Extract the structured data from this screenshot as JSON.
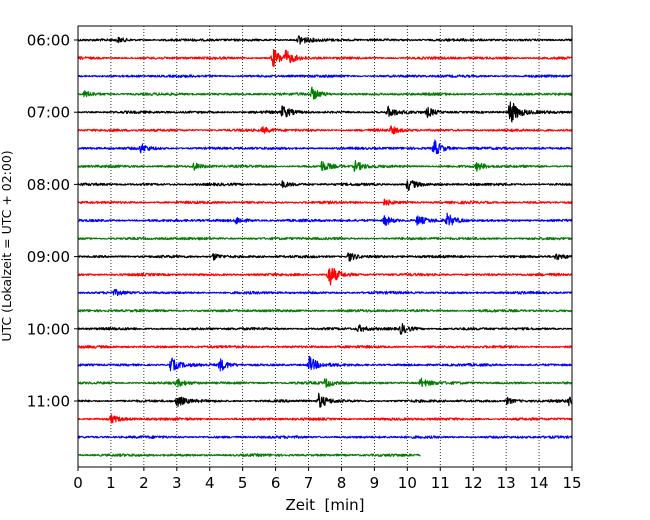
{
  "chart_data": {
    "type": "line",
    "title": "",
    "xlabel": "Zeit  [min]",
    "ylabel": "UTC (Lokalzeit = UTC + 02:00)",
    "xlim": [
      0,
      15
    ],
    "x_ticks": [
      0,
      1,
      2,
      3,
      4,
      5,
      6,
      7,
      8,
      9,
      10,
      11,
      12,
      13,
      14,
      15
    ],
    "y_tick_labels": [
      "06:00",
      "07:00",
      "08:00",
      "09:00",
      "10:00",
      "11:00"
    ],
    "grid": "vertical dotted lines at each minute",
    "legend": "none",
    "trace_interval_min": 15,
    "color_cycle": [
      "#000000",
      "#ff0000",
      "#0000ff",
      "#008000"
    ],
    "traces": [
      {
        "start": "06:00",
        "color": "#000000",
        "x_end": 15,
        "events": [
          {
            "x": 6.7,
            "amp": 0.45
          },
          {
            "x": 1.2,
            "amp": 0.2
          }
        ]
      },
      {
        "start": "06:15",
        "color": "#ff0000",
        "x_end": 15,
        "events": [
          {
            "x": 5.9,
            "amp": 0.85
          },
          {
            "x": 6.3,
            "amp": 0.5
          }
        ]
      },
      {
        "start": "06:30",
        "color": "#0000ff",
        "x_end": 15,
        "events": []
      },
      {
        "start": "06:45",
        "color": "#008000",
        "x_end": 15,
        "events": [
          {
            "x": 7.1,
            "amp": 0.5
          },
          {
            "x": 0.2,
            "amp": 0.25
          }
        ]
      },
      {
        "start": "07:00",
        "color": "#000000",
        "x_end": 15,
        "events": [
          {
            "x": 13.1,
            "amp": 1.2
          },
          {
            "x": 6.2,
            "amp": 0.55
          },
          {
            "x": 9.4,
            "amp": 0.45
          },
          {
            "x": 10.6,
            "amp": 0.4
          }
        ]
      },
      {
        "start": "07:15",
        "color": "#ff0000",
        "x_end": 15,
        "events": [
          {
            "x": 9.5,
            "amp": 0.3
          },
          {
            "x": 5.6,
            "amp": 0.25
          }
        ]
      },
      {
        "start": "07:30",
        "color": "#0000ff",
        "x_end": 15,
        "events": [
          {
            "x": 10.8,
            "amp": 0.75
          },
          {
            "x": 1.9,
            "amp": 0.35
          }
        ]
      },
      {
        "start": "07:45",
        "color": "#008000",
        "x_end": 15,
        "events": [
          {
            "x": 7.4,
            "amp": 0.45
          },
          {
            "x": 8.4,
            "amp": 0.45
          },
          {
            "x": 12.1,
            "amp": 0.35
          },
          {
            "x": 3.5,
            "amp": 0.3
          }
        ]
      },
      {
        "start": "08:00",
        "color": "#000000",
        "x_end": 15,
        "events": [
          {
            "x": 10.0,
            "amp": 0.55
          },
          {
            "x": 6.2,
            "amp": 0.25
          }
        ]
      },
      {
        "start": "08:15",
        "color": "#ff0000",
        "x_end": 15,
        "events": [
          {
            "x": 9.3,
            "amp": 0.25
          }
        ]
      },
      {
        "start": "08:30",
        "color": "#0000ff",
        "x_end": 15,
        "events": [
          {
            "x": 11.2,
            "amp": 0.55
          },
          {
            "x": 9.3,
            "amp": 0.45
          },
          {
            "x": 10.3,
            "amp": 0.4
          },
          {
            "x": 4.8,
            "amp": 0.3
          }
        ]
      },
      {
        "start": "08:45",
        "color": "#008000",
        "x_end": 15,
        "events": []
      },
      {
        "start": "09:00",
        "color": "#000000",
        "x_end": 15,
        "events": [
          {
            "x": 8.2,
            "amp": 0.45
          },
          {
            "x": 4.1,
            "amp": 0.3
          },
          {
            "x": 14.5,
            "amp": 0.25
          }
        ]
      },
      {
        "start": "09:15",
        "color": "#ff0000",
        "x_end": 15,
        "events": [
          {
            "x": 7.6,
            "amp": 1.1
          }
        ]
      },
      {
        "start": "09:30",
        "color": "#0000ff",
        "x_end": 15,
        "events": [
          {
            "x": 1.1,
            "amp": 0.2
          }
        ]
      },
      {
        "start": "09:45",
        "color": "#008000",
        "x_end": 15,
        "events": []
      },
      {
        "start": "10:00",
        "color": "#000000",
        "x_end": 15,
        "events": [
          {
            "x": 9.8,
            "amp": 0.45
          },
          {
            "x": 8.5,
            "amp": 0.3
          }
        ]
      },
      {
        "start": "10:15",
        "color": "#ff0000",
        "x_end": 15,
        "events": []
      },
      {
        "start": "10:30",
        "color": "#0000ff",
        "x_end": 15,
        "events": [
          {
            "x": 2.8,
            "amp": 0.65
          },
          {
            "x": 4.3,
            "amp": 0.55
          },
          {
            "x": 7.0,
            "amp": 0.75
          }
        ]
      },
      {
        "start": "10:45",
        "color": "#008000",
        "x_end": 15,
        "events": [
          {
            "x": 10.4,
            "amp": 0.4
          },
          {
            "x": 7.5,
            "amp": 0.35
          },
          {
            "x": 3.0,
            "amp": 0.3
          }
        ]
      },
      {
        "start": "11:00",
        "color": "#000000",
        "x_end": 15,
        "events": [
          {
            "x": 7.3,
            "amp": 0.65
          },
          {
            "x": 3.0,
            "amp": 0.5
          },
          {
            "x": 14.9,
            "amp": 0.4
          },
          {
            "x": 13.0,
            "amp": 0.3
          }
        ]
      },
      {
        "start": "11:15",
        "color": "#ff0000",
        "x_end": 15,
        "events": [
          {
            "x": 1.0,
            "amp": 0.35
          }
        ]
      },
      {
        "start": "11:30",
        "color": "#0000ff",
        "x_end": 15,
        "events": []
      },
      {
        "start": "11:45",
        "color": "#008000",
        "x_end": 10.4,
        "events": []
      }
    ]
  }
}
